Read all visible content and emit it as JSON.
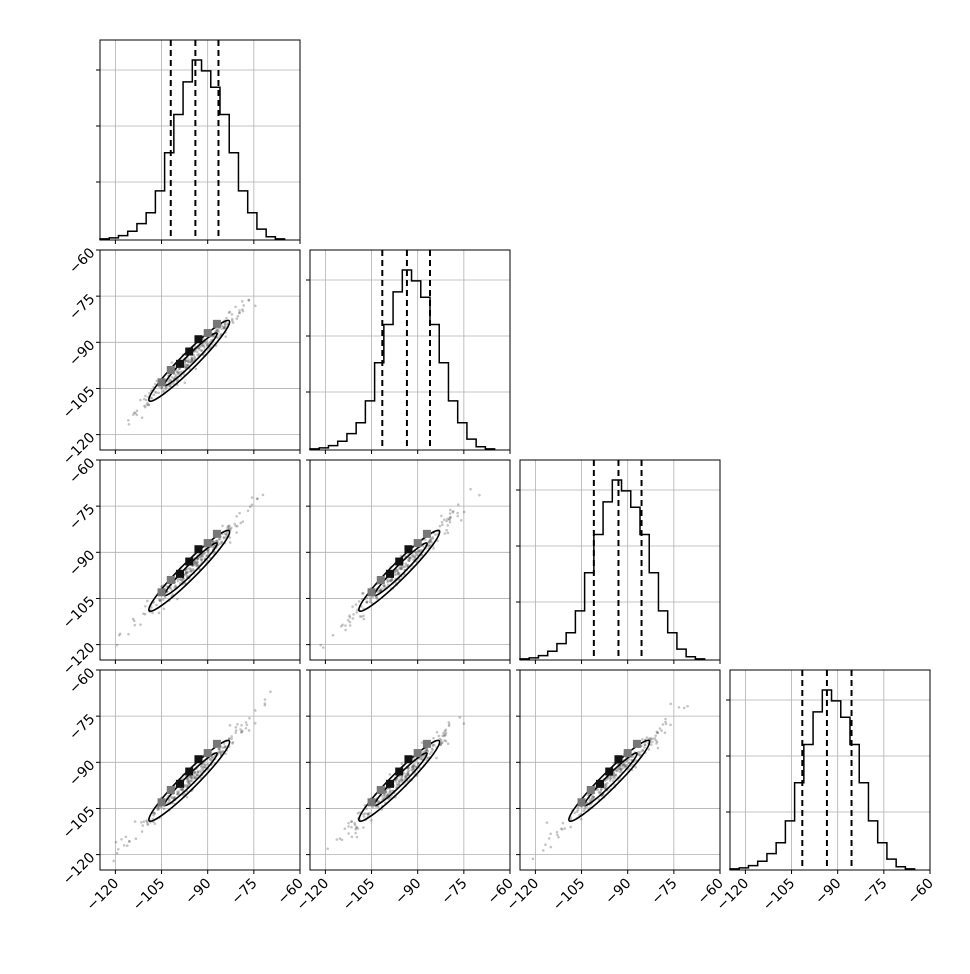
{
  "chart_data": {
    "type": "corner",
    "n_params": 4,
    "axis_ticks": [
      -120,
      -105,
      -90,
      -75,
      -60
    ],
    "bottom_tick_labels": [
      "−120",
      "−105",
      "−90",
      "−75",
      "−60"
    ],
    "left_tick_labels": [
      "−60",
      "−75",
      "−90",
      "−105",
      "−120"
    ],
    "grid": true,
    "parameters": [
      {
        "xlim": [
          -125,
          -60
        ],
        "quantiles": [
          -102,
          -94,
          -86.5
        ],
        "hist_bins_x": [
          -125,
          -122,
          -119,
          -116,
          -113,
          -110,
          -107,
          -104,
          -101,
          -98,
          -95,
          -92,
          -89,
          -86,
          -83,
          -80,
          -77,
          -74,
          -71,
          -68,
          -65
        ],
        "hist_counts": [
          1,
          2,
          4,
          8,
          15,
          25,
          45,
          80,
          115,
          145,
          165,
          155,
          140,
          115,
          80,
          45,
          25,
          10,
          3,
          1
        ]
      },
      {
        "xlim": [
          -125,
          -60
        ],
        "quantiles": [
          -101.5,
          -93.5,
          -86
        ],
        "hist_bins_x": [
          -125,
          -122,
          -119,
          -116,
          -113,
          -110,
          -107,
          -104,
          -101,
          -98,
          -95,
          -92,
          -89,
          -86,
          -83,
          -80,
          -77,
          -74,
          -71,
          -68,
          -65
        ],
        "hist_counts": [
          1,
          2,
          4,
          8,
          15,
          25,
          45,
          80,
          115,
          145,
          165,
          155,
          140,
          115,
          80,
          45,
          25,
          10,
          3,
          1
        ]
      },
      {
        "xlim": [
          -125,
          -60
        ],
        "quantiles": [
          -101,
          -93,
          -85.5
        ],
        "hist_bins_x": [
          -125,
          -122,
          -119,
          -116,
          -113,
          -110,
          -107,
          -104,
          -101,
          -98,
          -95,
          -92,
          -89,
          -86,
          -83,
          -80,
          -77,
          -74,
          -71,
          -68,
          -65
        ],
        "hist_counts": [
          1,
          2,
          4,
          8,
          15,
          25,
          45,
          80,
          115,
          145,
          165,
          155,
          140,
          115,
          80,
          45,
          25,
          10,
          3,
          1
        ]
      },
      {
        "xlim": [
          -125,
          -60
        ],
        "quantiles": [
          -101.5,
          -93.5,
          -85.5
        ],
        "hist_bins_x": [
          -125,
          -122,
          -119,
          -116,
          -113,
          -110,
          -107,
          -104,
          -101,
          -98,
          -95,
          -92,
          -89,
          -86,
          -83,
          -80,
          -77,
          -74,
          -71,
          -68,
          -65
        ],
        "hist_counts": [
          1,
          2,
          4,
          8,
          15,
          25,
          45,
          80,
          115,
          145,
          165,
          155,
          140,
          115,
          80,
          45,
          25,
          10,
          3,
          1
        ]
      }
    ],
    "pair_scatter": {
      "correlation": 0.99,
      "x_range": [
        -125,
        -70
      ],
      "contour_outer": {
        "x": [
          -109,
          -83
        ]
      },
      "contour_inner": {
        "x": [
          -104,
          -87
        ]
      },
      "density_points": [
        [
          -105,
          -103
        ],
        [
          -102,
          -99
        ],
        [
          -99,
          -97
        ],
        [
          -96,
          -93
        ],
        [
          -93,
          -89
        ],
        [
          -90,
          -87
        ],
        [
          -87,
          -84
        ]
      ]
    }
  }
}
